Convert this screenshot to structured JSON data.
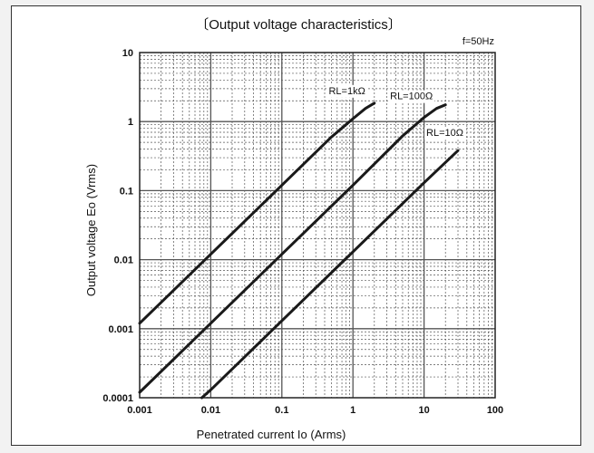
{
  "chart_data": {
    "type": "line",
    "title": "〔Output voltage characteristics〕",
    "annotation": "f=50Hz",
    "xlabel": "Penetrated current Io (Arms)",
    "ylabel": "Output voltage Eo (Vrms)",
    "xscale": "log",
    "yscale": "log",
    "xlim": [
      0.001,
      100
    ],
    "ylim": [
      0.0001,
      10
    ],
    "grid": true,
    "x_ticks": [
      "0.001",
      "0.01",
      "0.1",
      "1",
      "10",
      "100"
    ],
    "y_ticks": [
      "0.0001",
      "0.001",
      "0.01",
      "0.1",
      "1",
      "10"
    ],
    "series": [
      {
        "name": "RL=1kΩ",
        "points": [
          [
            0.001,
            0.0012
          ],
          [
            0.01,
            0.012
          ],
          [
            0.1,
            0.12
          ],
          [
            0.5,
            0.6
          ],
          [
            1,
            1.1
          ],
          [
            1.5,
            1.55
          ],
          [
            2,
            1.85
          ]
        ]
      },
      {
        "name": "RL=100Ω",
        "points": [
          [
            0.001,
            0.00012
          ],
          [
            0.01,
            0.0012
          ],
          [
            0.1,
            0.012
          ],
          [
            1,
            0.12
          ],
          [
            5,
            0.62
          ],
          [
            10,
            1.15
          ],
          [
            15,
            1.55
          ],
          [
            20,
            1.75
          ]
        ]
      },
      {
        "name": "RL=10Ω",
        "points": [
          [
            0.0075,
            0.0001
          ],
          [
            0.01,
            0.00013
          ],
          [
            0.1,
            0.0013
          ],
          [
            1,
            0.013
          ],
          [
            10,
            0.13
          ],
          [
            30,
            0.38
          ]
        ]
      }
    ],
    "colors": {
      "line": "#1a1a1a",
      "grid": "#555555",
      "frame": "#333333"
    }
  }
}
